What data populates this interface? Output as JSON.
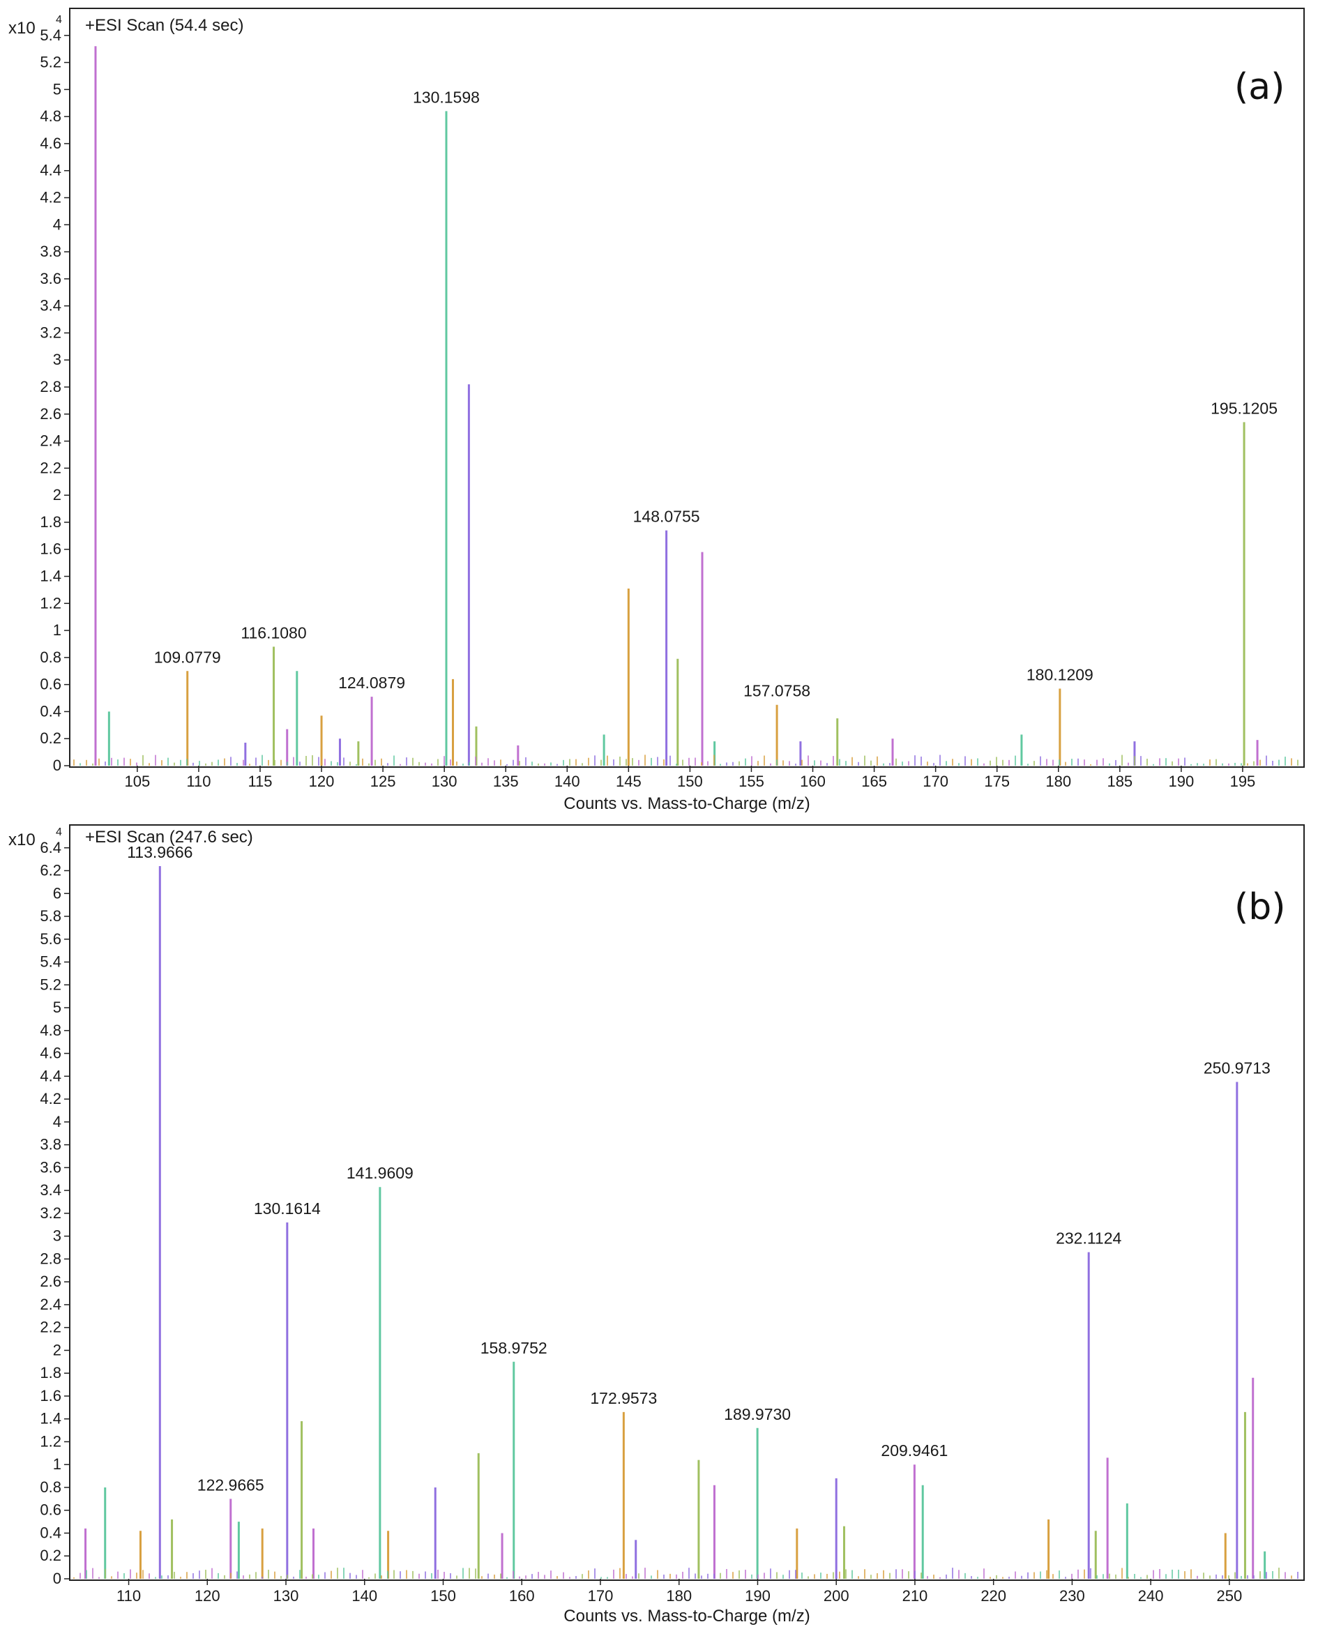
{
  "chart_data": [
    {
      "type": "bar",
      "panel_label": "(a)",
      "header": "+ESI Scan (54.4 sec)",
      "y_multiplier": "x10",
      "y_exponent": "4",
      "xlabel": "Counts vs. Mass-to-Charge (m/z)",
      "xlim": [
        99.5,
        200
      ],
      "ylim": [
        0,
        5.6
      ],
      "x_ticks": [
        105,
        110,
        115,
        120,
        125,
        130,
        135,
        140,
        145,
        150,
        155,
        160,
        165,
        170,
        175,
        180,
        185,
        190,
        195
      ],
      "y_ticks": [
        0,
        0.2,
        0.4,
        0.6,
        0.8,
        1,
        1.2,
        1.4,
        1.6,
        1.8,
        2,
        2.2,
        2.4,
        2.6,
        2.8,
        3,
        3.2,
        3.4,
        3.6,
        3.8,
        4,
        4.2,
        4.4,
        4.6,
        4.8,
        5,
        5.2,
        5.4
      ],
      "y_tick_labels": [
        "0",
        "0.2",
        "0.4",
        "0.6",
        "0.8",
        "1",
        "1.2",
        "1.4",
        "1.6",
        "1.8",
        "2",
        "2.2",
        "2.4",
        "2.6",
        "2.8",
        "3",
        "3.2",
        "3.4",
        "3.6",
        "3.8",
        "4",
        "4.2",
        "4.4",
        "4.6",
        "4.8",
        "5",
        "5.2",
        "5.4"
      ],
      "peaks": [
        {
          "x": 101.6,
          "y": 5.32
        },
        {
          "x": 102.7,
          "y": 0.4
        },
        {
          "x": 109.08,
          "y": 0.7,
          "label": "109.0779"
        },
        {
          "x": 113.8,
          "y": 0.17
        },
        {
          "x": 116.11,
          "y": 0.88,
          "label": "116.1080"
        },
        {
          "x": 117.2,
          "y": 0.27
        },
        {
          "x": 118.0,
          "y": 0.7
        },
        {
          "x": 120.0,
          "y": 0.37
        },
        {
          "x": 121.5,
          "y": 0.2
        },
        {
          "x": 123.0,
          "y": 0.18
        },
        {
          "x": 124.09,
          "y": 0.51,
          "label": "124.0879"
        },
        {
          "x": 130.16,
          "y": 4.84,
          "label": "130.1598"
        },
        {
          "x": 130.7,
          "y": 0.64
        },
        {
          "x": 132.0,
          "y": 2.82
        },
        {
          "x": 132.6,
          "y": 0.29
        },
        {
          "x": 136.0,
          "y": 0.15
        },
        {
          "x": 143.0,
          "y": 0.23
        },
        {
          "x": 145.0,
          "y": 1.31
        },
        {
          "x": 148.08,
          "y": 1.74,
          "label": "148.0755"
        },
        {
          "x": 149.0,
          "y": 0.79
        },
        {
          "x": 151.0,
          "y": 1.58
        },
        {
          "x": 152.0,
          "y": 0.18
        },
        {
          "x": 157.08,
          "y": 0.45,
          "label": "157.0758"
        },
        {
          "x": 159.0,
          "y": 0.18
        },
        {
          "x": 162.0,
          "y": 0.35
        },
        {
          "x": 166.5,
          "y": 0.2
        },
        {
          "x": 177.0,
          "y": 0.23
        },
        {
          "x": 180.12,
          "y": 0.57,
          "label": "180.1209"
        },
        {
          "x": 186.2,
          "y": 0.18
        },
        {
          "x": 195.12,
          "y": 2.54,
          "label": "195.1205"
        },
        {
          "x": 196.2,
          "y": 0.19
        }
      ]
    },
    {
      "type": "bar",
      "panel_label": "(b)",
      "header": "+ESI Scan (247.6 sec)",
      "y_multiplier": "x10",
      "y_exponent": "4",
      "xlabel": "Counts vs. Mass-to-Charge (m/z)",
      "xlim": [
        102.5,
        259.5
      ],
      "ylim": [
        0,
        6.6
      ],
      "x_ticks": [
        110,
        120,
        130,
        140,
        150,
        160,
        170,
        180,
        190,
        200,
        210,
        220,
        230,
        240,
        250
      ],
      "y_ticks": [
        0,
        0.2,
        0.4,
        0.6,
        0.8,
        1,
        1.2,
        1.4,
        1.6,
        1.8,
        2,
        2.2,
        2.4,
        2.6,
        2.8,
        3,
        3.2,
        3.4,
        3.6,
        3.8,
        4,
        4.2,
        4.4,
        4.6,
        4.8,
        5,
        5.2,
        5.4,
        5.6,
        5.8,
        6,
        6.2,
        6.4
      ],
      "y_tick_labels": [
        "0",
        "0.2",
        "0.4",
        "0.6",
        "0.8",
        "1",
        "1.2",
        "1.4",
        "1.6",
        "1.8",
        "2",
        "2.2",
        "2.4",
        "2.6",
        "2.8",
        "3",
        "3.2",
        "3.4",
        "3.6",
        "3.8",
        "4",
        "4.2",
        "4.4",
        "4.6",
        "4.8",
        "5",
        "5.2",
        "5.4",
        "5.6",
        "5.8",
        "6",
        "6.2",
        "6.4"
      ],
      "peaks": [
        {
          "x": 104.5,
          "y": 0.44
        },
        {
          "x": 107.0,
          "y": 0.8
        },
        {
          "x": 111.5,
          "y": 0.42
        },
        {
          "x": 113.97,
          "y": 6.24,
          "label": "113.9666"
        },
        {
          "x": 115.5,
          "y": 0.52
        },
        {
          "x": 122.97,
          "y": 0.7,
          "label": "122.9665"
        },
        {
          "x": 124.0,
          "y": 0.5
        },
        {
          "x": 127.0,
          "y": 0.44
        },
        {
          "x": 130.16,
          "y": 3.12,
          "label": "130.1614"
        },
        {
          "x": 132.0,
          "y": 1.38
        },
        {
          "x": 133.5,
          "y": 0.44
        },
        {
          "x": 141.96,
          "y": 3.43,
          "label": "141.9609"
        },
        {
          "x": 143.0,
          "y": 0.42
        },
        {
          "x": 149.0,
          "y": 0.8
        },
        {
          "x": 154.5,
          "y": 1.1
        },
        {
          "x": 157.5,
          "y": 0.4
        },
        {
          "x": 158.98,
          "y": 1.9,
          "label": "158.9752"
        },
        {
          "x": 172.96,
          "y": 1.46,
          "label": "172.9573"
        },
        {
          "x": 174.5,
          "y": 0.34
        },
        {
          "x": 182.5,
          "y": 1.04
        },
        {
          "x": 184.5,
          "y": 0.82
        },
        {
          "x": 189.97,
          "y": 1.32,
          "label": "189.9730"
        },
        {
          "x": 195.0,
          "y": 0.44
        },
        {
          "x": 200.0,
          "y": 0.88
        },
        {
          "x": 201.0,
          "y": 0.46
        },
        {
          "x": 209.95,
          "y": 1.0,
          "label": "209.9461"
        },
        {
          "x": 211.0,
          "y": 0.82
        },
        {
          "x": 227.0,
          "y": 0.52
        },
        {
          "x": 232.11,
          "y": 2.86,
          "label": "232.1124"
        },
        {
          "x": 233.0,
          "y": 0.42
        },
        {
          "x": 234.5,
          "y": 1.06
        },
        {
          "x": 237.0,
          "y": 0.66
        },
        {
          "x": 249.5,
          "y": 0.4
        },
        {
          "x": 250.97,
          "y": 4.35,
          "label": "250.9713"
        },
        {
          "x": 252.0,
          "y": 1.46
        },
        {
          "x": 253.0,
          "y": 1.76
        },
        {
          "x": 254.5,
          "y": 0.24
        }
      ]
    }
  ]
}
